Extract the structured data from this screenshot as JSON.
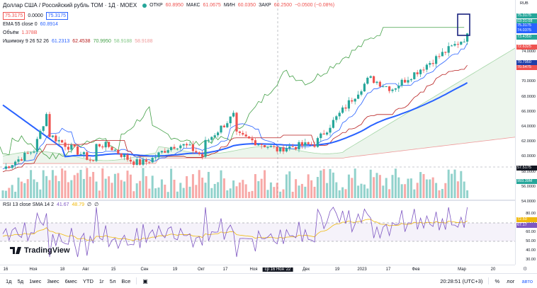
{
  "symbol": {
    "title": "Доллар США / Российский рубль ТОМ · 1Д · MOEX"
  },
  "ohlc": {
    "o_label": "ОТКР",
    "o": "60.8950",
    "h_label": "МАКС",
    "h": "61.0675",
    "l_label": "МИН",
    "l": "60.0350",
    "c_label": "ЗАКР",
    "c": "60.2500",
    "change": "−0.0500 (−0.08%)"
  },
  "quote": {
    "bid": "75.3175",
    "spread": "0.0000",
    "ask": "75.3175"
  },
  "indicators": {
    "ema": {
      "label": "EMA 55 close 0",
      "value": "60.8914"
    },
    "volume": {
      "label": "Объём",
      "value": "1.378B"
    },
    "ichimoku": {
      "label": "Ишимоку 9 26 52 26",
      "v1": "61.2313",
      "v2": "62.4538",
      "v3": "70.9950",
      "v4": "58.9188",
      "v5": "58.9188"
    },
    "rsi": {
      "label": "RSI 13 close SMA 14 2",
      "v1": "41.67",
      "v2": "48.79",
      "v3": "∅",
      "v4": "∅"
    }
  },
  "colors": {
    "up": "#26a69a",
    "down": "#ef5350",
    "ema": "#2962ff",
    "accent": "#2962ff"
  },
  "currency": "RUB",
  "price_scale": {
    "ticks": [
      "74.0000",
      "72.0000",
      "70.0000",
      "68.0000",
      "66.0000",
      "64.0000",
      "62.0000",
      "60.0000",
      "58.0000",
      "56.0000",
      "54.0000"
    ],
    "labels": [
      {
        "text": "75.3175",
        "color": "#26a69a"
      },
      {
        "text": "03:31:08",
        "color": "#26a69a"
      },
      {
        "text": "75.3175",
        "color": "#2962ff"
      },
      {
        "text": "74.0375",
        "color": "#2962ff"
      },
      {
        "text": "73.4350",
        "color": "#26a69a"
      },
      {
        "text": "72.6325",
        "color": "#ef5350"
      },
      {
        "text": "70.7950",
        "color": "#1e3ea8"
      },
      {
        "text": "70.5475",
        "color": "#ef5350"
      },
      {
        "text": "57.5175",
        "color": "#131722"
      },
      {
        "text": "993.39M",
        "color": "#26a69a"
      }
    ]
  },
  "rsi_scale": {
    "ticks": [
      "80.00",
      "70.00",
      "60.00",
      "50.00",
      "40.00",
      "30.00"
    ],
    "labels": [
      {
        "text": "72.50",
        "color": "#f0b90b"
      },
      {
        "text": "67.17",
        "color": "#7e57c2"
      }
    ]
  },
  "time_axis": [
    "16",
    "Ноя",
    "18",
    "Авг",
    "15",
    "Сен",
    "19",
    "Окт",
    "17",
    "Ноя",
    "ср 16 Ноя '22",
    "Дек",
    "19",
    "2023",
    "17",
    "Фев",
    "Мар",
    "20"
  ],
  "bottom_bar": {
    "ranges": [
      "1д",
      "5д",
      "1мес",
      "3мес",
      "6мес",
      "YTD",
      "1г",
      "5л",
      "Все"
    ],
    "clock": "20:28:51 (UTC+3)",
    "percent": "%",
    "log": "лог",
    "auto": "авто"
  },
  "logo": "TradingView"
}
